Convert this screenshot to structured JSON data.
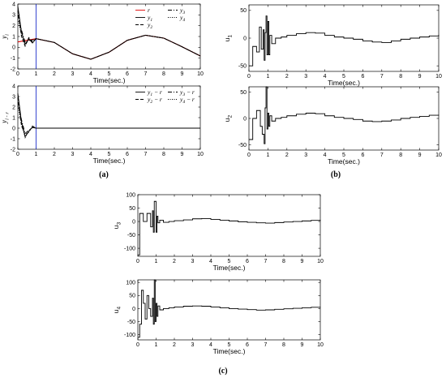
{
  "captions": [
    "(a)",
    "(b)",
    "(c)"
  ],
  "chart_data": [
    {
      "type": "line",
      "xlabel": "Time(sec.)",
      "ylabel": "y_i",
      "xlim": [
        0,
        10
      ],
      "ylim": [
        -2,
        4
      ],
      "xticks": [
        0,
        1,
        2,
        3,
        4,
        5,
        6,
        7,
        8,
        9,
        10
      ],
      "yticks": [
        -2,
        -1,
        0,
        1,
        2,
        3,
        4
      ],
      "vline_x": 1,
      "legend_position": "top-right",
      "series": [
        {
          "name": "r",
          "color": "#e00000",
          "style": "solid",
          "x": [
            0,
            1,
            2,
            3,
            4,
            5,
            6,
            7,
            8,
            9,
            10
          ],
          "y": [
            0.5,
            0.8,
            0.45,
            -0.6,
            -1.1,
            -0.45,
            0.65,
            1.12,
            0.85,
            0.05,
            -0.8
          ]
        },
        {
          "name": "y_1",
          "color": "#000000",
          "style": "solid",
          "x": [
            0,
            0.2,
            0.4,
            0.6,
            0.8,
            1,
            2,
            3,
            4,
            5,
            6,
            7,
            8,
            9,
            10
          ],
          "y": [
            3.8,
            1.4,
            0.3,
            0.8,
            0.4,
            0.8,
            0.45,
            -0.6,
            -1.1,
            -0.45,
            0.65,
            1.12,
            0.85,
            0.05,
            -0.8
          ]
        },
        {
          "name": "y_2",
          "color": "#000000",
          "style": "dashed",
          "x": [
            0,
            0.2,
            0.4,
            0.6,
            0.8,
            1,
            2,
            3,
            4,
            5,
            6,
            7,
            8,
            9,
            10
          ],
          "y": [
            3.4,
            1.0,
            0.1,
            0.9,
            0.5,
            0.8,
            0.45,
            -0.6,
            -1.1,
            -0.45,
            0.65,
            1.12,
            0.85,
            0.05,
            -0.8
          ]
        },
        {
          "name": "y_3",
          "color": "#000000",
          "style": "dashdot",
          "x": [
            0,
            0.2,
            0.4,
            0.6,
            0.8,
            1,
            2,
            3,
            4,
            5,
            6,
            7,
            8,
            9,
            10
          ],
          "y": [
            3.0,
            1.6,
            0.5,
            0.6,
            0.7,
            0.8,
            0.45,
            -0.6,
            -1.1,
            -0.45,
            0.65,
            1.12,
            0.85,
            0.05,
            -0.8
          ]
        },
        {
          "name": "y_4",
          "color": "#000000",
          "style": "dotted",
          "x": [
            0,
            0.2,
            0.4,
            0.6,
            0.8,
            1,
            2,
            3,
            4,
            5,
            6,
            7,
            8,
            9,
            10
          ],
          "y": [
            2.6,
            1.2,
            0.2,
            0.7,
            0.6,
            0.8,
            0.45,
            -0.6,
            -1.1,
            -0.45,
            0.65,
            1.12,
            0.85,
            0.05,
            -0.8
          ]
        }
      ]
    },
    {
      "type": "line",
      "xlabel": "Time(sec.)",
      "ylabel": "y_i - r",
      "xlim": [
        0,
        10
      ],
      "ylim": [
        -2,
        4
      ],
      "xticks": [
        0,
        1,
        2,
        3,
        4,
        5,
        6,
        7,
        8,
        9,
        10
      ],
      "yticks": [
        -2,
        -1,
        0,
        1,
        2,
        3,
        4
      ],
      "vline_x": 1,
      "legend_position": "top-right",
      "series": [
        {
          "name": "y_1 - r",
          "color": "#000000",
          "style": "solid",
          "x": [
            0,
            0.2,
            0.4,
            0.6,
            0.8,
            1,
            1.5,
            10
          ],
          "y": [
            3.3,
            0.6,
            -0.8,
            -0.3,
            0.1,
            0,
            0,
            0
          ]
        },
        {
          "name": "y_2 - r",
          "color": "#000000",
          "style": "dashed",
          "x": [
            0,
            0.2,
            0.4,
            0.6,
            0.8,
            1,
            1.5,
            10
          ],
          "y": [
            2.9,
            0.2,
            -0.6,
            -0.4,
            0.2,
            0,
            0,
            0
          ]
        },
        {
          "name": "y_3 - r",
          "color": "#000000",
          "style": "dashdot",
          "x": [
            0,
            0.2,
            0.4,
            0.6,
            0.8,
            1,
            1.5,
            10
          ],
          "y": [
            2.5,
            0.8,
            -0.5,
            -0.2,
            0.05,
            0,
            0,
            0
          ]
        },
        {
          "name": "y_4 - r",
          "color": "#000000",
          "style": "dotted",
          "x": [
            0,
            0.2,
            0.4,
            0.6,
            0.8,
            1,
            1.5,
            10
          ],
          "y": [
            2.1,
            0.4,
            -0.9,
            -0.3,
            0.15,
            0,
            0,
            0
          ]
        }
      ]
    },
    {
      "type": "line",
      "xlabel": "Time(sec.)",
      "ylabel": "u_1",
      "xlim": [
        0,
        10
      ],
      "ylim": [
        -60,
        60
      ],
      "xticks": [
        0,
        1,
        2,
        3,
        4,
        5,
        6,
        7,
        8,
        9,
        10
      ],
      "yticks": [
        -50,
        0,
        50
      ],
      "series": [
        {
          "color": "#000000",
          "style": "steps",
          "x": [
            0,
            0.2,
            0.4,
            0.55,
            0.65,
            0.75,
            0.8,
            0.85,
            0.9,
            0.95,
            1.0,
            1.05,
            1.1,
            1.2,
            1.4,
            1.7,
            2.0,
            2.5,
            3.0,
            3.5,
            4.0,
            4.5,
            5.0,
            5.5,
            6.0,
            6.5,
            7.0,
            7.5,
            8.0,
            8.5,
            9.0,
            9.5,
            10
          ],
          "y": [
            -50,
            -15,
            -25,
            20,
            -20,
            15,
            -40,
            10,
            40,
            -30,
            30,
            -30,
            5,
            -10,
            0,
            2,
            5,
            8,
            10,
            9,
            5,
            2,
            0,
            -2,
            -5,
            -7,
            -8,
            -5,
            -2,
            0,
            2,
            4,
            6
          ]
        }
      ]
    },
    {
      "type": "line",
      "xlabel": "Time(sec.)",
      "ylabel": "u_2",
      "xlim": [
        0,
        10
      ],
      "ylim": [
        -60,
        60
      ],
      "xticks": [
        0,
        1,
        2,
        3,
        4,
        5,
        6,
        7,
        8,
        9,
        10
      ],
      "yticks": [
        -50,
        0,
        50
      ],
      "series": [
        {
          "color": "#000000",
          "style": "steps",
          "x": [
            0,
            0.2,
            0.4,
            0.6,
            0.7,
            0.8,
            0.85,
            0.9,
            0.95,
            1.0,
            1.05,
            1.1,
            1.2,
            1.4,
            1.7,
            2.0,
            2.5,
            3.0,
            3.5,
            4.0,
            4.5,
            5.0,
            5.5,
            6.0,
            6.5,
            7.0,
            7.5,
            8.0,
            8.5,
            9.0,
            9.5,
            10
          ],
          "y": [
            -40,
            0,
            15,
            -15,
            -30,
            -48,
            20,
            60,
            -20,
            10,
            -15,
            5,
            -5,
            0,
            2,
            5,
            8,
            10,
            9,
            5,
            2,
            0,
            -2,
            -5,
            -6,
            -5,
            -3,
            0,
            2,
            4,
            6,
            7
          ]
        }
      ]
    },
    {
      "type": "line",
      "xlabel": "Time(sec.)",
      "ylabel": "u_3",
      "xlim": [
        0,
        10
      ],
      "ylim": [
        -130,
        100
      ],
      "xticks": [
        0,
        1,
        2,
        3,
        4,
        5,
        6,
        7,
        8,
        9,
        10
      ],
      "yticks": [
        -100,
        -50,
        0,
        50,
        100
      ],
      "series": [
        {
          "color": "#000000",
          "style": "steps",
          "x": [
            0,
            0.1,
            0.3,
            0.5,
            0.7,
            0.8,
            0.85,
            0.9,
            1.0,
            1.05,
            1.1,
            1.2,
            1.4,
            1.7,
            2.0,
            2.5,
            3.0,
            3.5,
            4.0,
            4.5,
            5.0,
            5.5,
            6.0,
            6.5,
            7.0,
            7.5,
            8.0,
            8.5,
            9.0,
            9.5,
            10
          ],
          "y": [
            -125,
            30,
            0,
            30,
            -20,
            40,
            -40,
            75,
            -40,
            20,
            -5,
            5,
            -3,
            0,
            3,
            6,
            10,
            11,
            8,
            5,
            2,
            -1,
            -3,
            -5,
            -6,
            -4,
            -2,
            0,
            2,
            4,
            6
          ]
        }
      ]
    },
    {
      "type": "line",
      "xlabel": "Time(sec.)",
      "ylabel": "u_4",
      "xlim": [
        0,
        10
      ],
      "ylim": [
        -120,
        110
      ],
      "xticks": [
        0,
        1,
        2,
        3,
        4,
        5,
        6,
        7,
        8,
        9,
        10
      ],
      "yticks": [
        -100,
        -50,
        0,
        50,
        100
      ],
      "series": [
        {
          "color": "#000000",
          "style": "steps",
          "x": [
            0,
            0.1,
            0.2,
            0.3,
            0.4,
            0.5,
            0.6,
            0.7,
            0.8,
            0.85,
            0.9,
            0.95,
            1.0,
            1.05,
            1.1,
            1.2,
            1.4,
            1.7,
            2.0,
            2.5,
            3.0,
            3.5,
            4.0,
            4.5,
            5.0,
            5.5,
            6.0,
            6.5,
            7.0,
            7.5,
            8.0,
            8.5,
            9.0,
            9.5,
            10
          ],
          "y": [
            -110,
            -60,
            70,
            20,
            -40,
            50,
            0,
            -30,
            40,
            -60,
            110,
            -50,
            20,
            -30,
            10,
            -5,
            0,
            3,
            6,
            9,
            10,
            9,
            6,
            3,
            0,
            -2,
            -4,
            -6,
            -5,
            -3,
            -1,
            1,
            3,
            5,
            6
          ]
        }
      ]
    }
  ]
}
